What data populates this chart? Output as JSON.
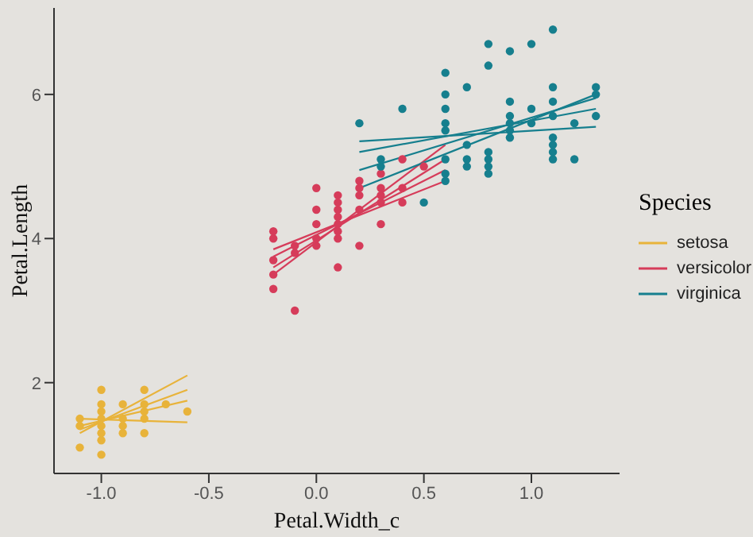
{
  "chart_data": {
    "type": "scatter",
    "xlabel": "Petal.Width_c",
    "ylabel": "Petal.Length",
    "legend_title": "Species",
    "legend": "right",
    "marker": "circle",
    "grid": false,
    "xlim": [
      -1.22,
      1.41
    ],
    "ylim": [
      0.74,
      7.2
    ],
    "xticks": [
      {
        "value": -1,
        "label": "-1.0"
      },
      {
        "value": -0.5,
        "label": "-0.5"
      },
      {
        "value": 0,
        "label": "0.0"
      },
      {
        "value": 0.5,
        "label": "0.5"
      },
      {
        "value": 1,
        "label": "1.0"
      }
    ],
    "yticks": [
      2,
      4,
      6
    ],
    "series": [
      {
        "color": "#e8b33a",
        "x": [
          -1.1,
          -1.1,
          -1.1,
          -1.0,
          -1.0,
          -1.0,
          -1.0,
          -1.0,
          -1.0,
          -1.0,
          -1.0,
          -0.9,
          -0.9,
          -0.9,
          -0.9,
          -0.8,
          -0.8,
          -0.8,
          -0.8,
          -0.8,
          -0.7,
          -0.6
        ],
        "values": [
          1.1,
          1.4,
          1.5,
          1.0,
          1.2,
          1.3,
          1.4,
          1.5,
          1.6,
          1.7,
          1.9,
          1.3,
          1.4,
          1.5,
          1.7,
          1.3,
          1.5,
          1.6,
          1.7,
          1.9,
          1.7,
          1.6
        ]
      },
      {
        "color": "#d63c5a",
        "x": [
          -0.2,
          -0.2,
          -0.2,
          -0.2,
          -0.2,
          -0.1,
          -0.1,
          -0.1,
          0.0,
          0.0,
          0.0,
          0.0,
          0.0,
          0.1,
          0.1,
          0.1,
          0.1,
          0.1,
          0.1,
          0.1,
          0.1,
          0.2,
          0.2,
          0.2,
          0.2,
          0.2,
          0.3,
          0.3,
          0.3,
          0.3,
          0.3,
          0.4,
          0.4,
          0.4,
          0.5
        ],
        "values": [
          3.3,
          3.5,
          3.7,
          4.0,
          4.1,
          3.0,
          3.8,
          3.9,
          3.9,
          4.0,
          4.2,
          4.4,
          4.7,
          3.6,
          4.0,
          4.1,
          4.2,
          4.3,
          4.4,
          4.5,
          4.6,
          3.9,
          4.4,
          4.6,
          4.7,
          4.8,
          4.2,
          4.5,
          4.6,
          4.7,
          4.9,
          4.5,
          4.7,
          5.1,
          5.0
        ]
      },
      {
        "color": "#167f8e",
        "x": [
          0.2,
          0.3,
          0.3,
          0.4,
          0.5,
          0.6,
          0.6,
          0.6,
          0.6,
          0.6,
          0.6,
          0.6,
          0.6,
          0.7,
          0.7,
          0.7,
          0.7,
          0.8,
          0.8,
          0.8,
          0.8,
          0.8,
          0.8,
          0.9,
          0.9,
          0.9,
          0.9,
          0.9,
          0.9,
          1.0,
          1.0,
          1.0,
          1.1,
          1.1,
          1.1,
          1.1,
          1.1,
          1.1,
          1.1,
          1.1,
          1.2,
          1.2,
          1.3,
          1.3,
          1.3
        ],
        "values": [
          5.6,
          5.0,
          5.1,
          5.8,
          4.5,
          4.8,
          4.9,
          5.1,
          5.5,
          5.6,
          5.8,
          6.0,
          6.3,
          5.0,
          5.1,
          5.3,
          6.1,
          4.9,
          5.0,
          5.1,
          5.2,
          6.4,
          6.7,
          5.4,
          5.5,
          5.6,
          5.7,
          5.9,
          6.6,
          5.6,
          5.8,
          6.7,
          5.1,
          5.2,
          5.3,
          5.4,
          5.7,
          5.9,
          6.1,
          6.9,
          5.1,
          5.6,
          5.7,
          6.0,
          6.1
        ]
      },
      {
        "type": "line",
        "marker": "none",
        "name": "setosa",
        "color": "#e8b33a",
        "x": [
          -1.1,
          -0.6
        ],
        "values": [
          1.3,
          2.1
        ]
      },
      {
        "type": "line",
        "marker": "none",
        "color": "#e8b33a",
        "x": [
          -1.1,
          -0.6
        ],
        "values": [
          1.35,
          1.9
        ]
      },
      {
        "type": "line",
        "marker": "none",
        "color": "#e8b33a",
        "x": [
          -1.1,
          -0.6
        ],
        "values": [
          1.4,
          1.75
        ]
      },
      {
        "type": "line",
        "marker": "none",
        "color": "#e8b33a",
        "x": [
          -1.1,
          -0.6
        ],
        "values": [
          1.5,
          1.45
        ]
      },
      {
        "type": "line",
        "marker": "none",
        "name": "versicolor",
        "color": "#d63c5a",
        "x": [
          -0.2,
          0.6
        ],
        "values": [
          3.5,
          5.3
        ]
      },
      {
        "type": "line",
        "marker": "none",
        "color": "#d63c5a",
        "x": [
          -0.2,
          0.6
        ],
        "values": [
          3.6,
          5.1
        ]
      },
      {
        "type": "line",
        "marker": "none",
        "color": "#d63c5a",
        "x": [
          -0.2,
          0.6
        ],
        "values": [
          3.75,
          4.95
        ]
      },
      {
        "type": "line",
        "marker": "none",
        "color": "#d63c5a",
        "x": [
          -0.2,
          0.6
        ],
        "values": [
          3.85,
          4.8
        ]
      },
      {
        "type": "line",
        "marker": "none",
        "name": "virginica",
        "color": "#167f8e",
        "x": [
          0.2,
          1.3
        ],
        "values": [
          4.7,
          6.0
        ]
      },
      {
        "type": "line",
        "marker": "none",
        "color": "#167f8e",
        "x": [
          0.2,
          1.3
        ],
        "values": [
          4.95,
          5.95
        ]
      },
      {
        "type": "line",
        "marker": "none",
        "color": "#167f8e",
        "x": [
          0.2,
          1.3
        ],
        "values": [
          5.2,
          5.8
        ]
      },
      {
        "type": "line",
        "marker": "none",
        "color": "#167f8e",
        "x": [
          0.2,
          1.3
        ],
        "values": [
          5.35,
          5.55
        ]
      }
    ]
  }
}
